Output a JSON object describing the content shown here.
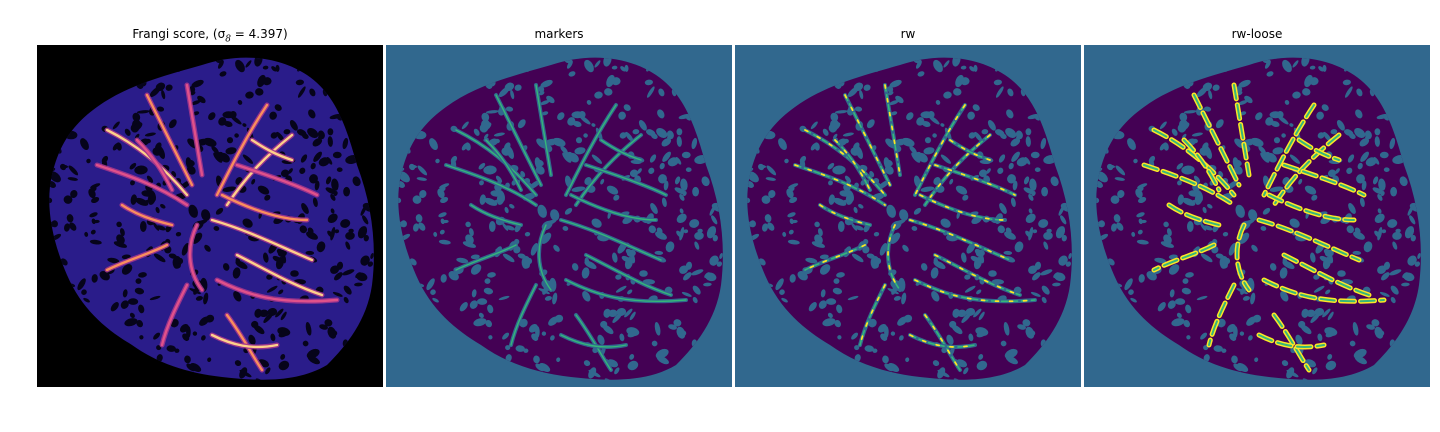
{
  "figure": {
    "panels": [
      {
        "id": "frangi",
        "title": "Frangi score, (σ",
        "title_sub": "8",
        "title_eq": " = 4.397)",
        "background": "#000000",
        "colormap": "magma",
        "region_fill": "#2a1c8a",
        "dark_fill": "#06041a",
        "vessel_colors": [
          "#a1358c",
          "#e0518a",
          "#f98e5d",
          "#fdd08a"
        ]
      },
      {
        "id": "markers",
        "title": "markers",
        "background": "#31688e",
        "region_fill": "#440154",
        "speckle_fill": "#31688e",
        "marker_color": "#35b779"
      },
      {
        "id": "rw",
        "title": "rw",
        "background": "#31688e",
        "region_fill": "#440154",
        "speckle_fill": "#31688e",
        "marker_color": "#35b779",
        "segment_color": "#fde725"
      },
      {
        "id": "rw_loose",
        "title": "rw-loose",
        "background": "#31688e",
        "region_fill": "#440154",
        "speckle_fill": "#31688e",
        "marker_color": "#35b779",
        "segment_color": "#fde725"
      }
    ]
  }
}
